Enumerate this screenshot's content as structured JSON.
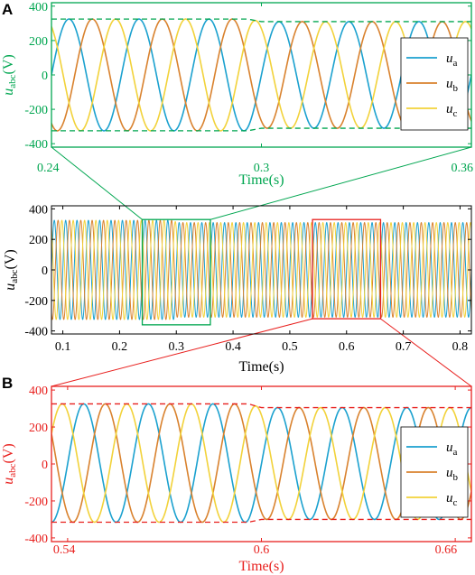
{
  "colors": {
    "ua": "#1BA1CF",
    "ub": "#D9822E",
    "uc": "#F2D23A",
    "zoomA": "#00A650",
    "zoomB": "#E8201E",
    "axis": "#000000"
  },
  "chart_data": [
    {
      "type": "line",
      "id": "A",
      "panel_label": "A",
      "ylabel_main": "u",
      "ylabel_sub": "abc",
      "ylabel_unit": "(V)",
      "xlabel": "Time(s)",
      "xlim": [
        0.24,
        0.36
      ],
      "ylim": [
        -420,
        420
      ],
      "xticks": [
        0.24,
        0.3,
        0.36
      ],
      "xtick_labels": [
        "0.24",
        "0.3",
        "0.36"
      ],
      "yticks": [
        -400,
        -200,
        0,
        200,
        400
      ],
      "ytick_labels": [
        "-400",
        "-200",
        "0",
        "200",
        "400"
      ],
      "legend_position": "right",
      "legend": [
        {
          "main": "u",
          "sub": "a"
        },
        {
          "main": "u",
          "sub": "b"
        },
        {
          "main": "u",
          "sub": "c"
        }
      ],
      "envelope": {
        "x": [
          0.24,
          0.296,
          0.3,
          0.36
        ],
        "upper": [
          325,
          325,
          310,
          310
        ],
        "lower": [
          -325,
          -325,
          -310,
          -310
        ]
      },
      "freq_hz": 50
    },
    {
      "type": "line",
      "id": "main",
      "ylabel_main": "u",
      "ylabel_sub": "abc",
      "ylabel_unit": "(V)",
      "xlabel": "Time(s)",
      "xlim": [
        0.08,
        0.82
      ],
      "ylim": [
        -420,
        420
      ],
      "xticks": [
        0.1,
        0.2,
        0.3,
        0.4,
        0.5,
        0.6,
        0.7,
        0.8
      ],
      "xtick_labels": [
        "0.1",
        "0.2",
        "0.3",
        "0.4",
        "0.5",
        "0.6",
        "0.7",
        "0.8"
      ],
      "yticks": [
        -400,
        -200,
        0,
        200,
        400
      ],
      "ytick_labels": [
        "-400",
        "-200",
        "0",
        "200",
        "400"
      ],
      "envelope": {
        "x": [
          0.08,
          0.296,
          0.3,
          0.82
        ],
        "upper": [
          325,
          325,
          310,
          310
        ],
        "lower": [
          -325,
          -325,
          -310,
          -310
        ]
      },
      "zoom_regions": [
        {
          "id": "A",
          "x": [
            0.24,
            0.36
          ],
          "y": [
            -360,
            330
          ]
        },
        {
          "id": "B",
          "x": [
            0.54,
            0.66
          ],
          "y": [
            -320,
            330
          ]
        }
      ],
      "freq_hz": 50
    },
    {
      "type": "line",
      "id": "B",
      "panel_label": "B",
      "ylabel_main": "u",
      "ylabel_sub": "abc",
      "ylabel_unit": "(V)",
      "xlabel": "Time(s)",
      "xlim": [
        0.535,
        0.665
      ],
      "ylim": [
        -420,
        420
      ],
      "xticks": [
        0.54,
        0.6,
        0.66
      ],
      "xtick_labels": [
        "0.54",
        "0.6",
        "0.66"
      ],
      "yticks": [
        -400,
        -200,
        0,
        200,
        400
      ],
      "ytick_labels": [
        "-400",
        "-200",
        "0",
        "200",
        "400"
      ],
      "legend_position": "right",
      "legend": [
        {
          "main": "u",
          "sub": "a"
        },
        {
          "main": "u",
          "sub": "b"
        },
        {
          "main": "u",
          "sub": "c"
        }
      ],
      "envelope": {
        "x": [
          0.535,
          0.596,
          0.6,
          0.665
        ],
        "upper": [
          325,
          325,
          305,
          305
        ],
        "lower": [
          -315,
          -315,
          -300,
          -300
        ]
      },
      "freq_hz": 50
    }
  ]
}
